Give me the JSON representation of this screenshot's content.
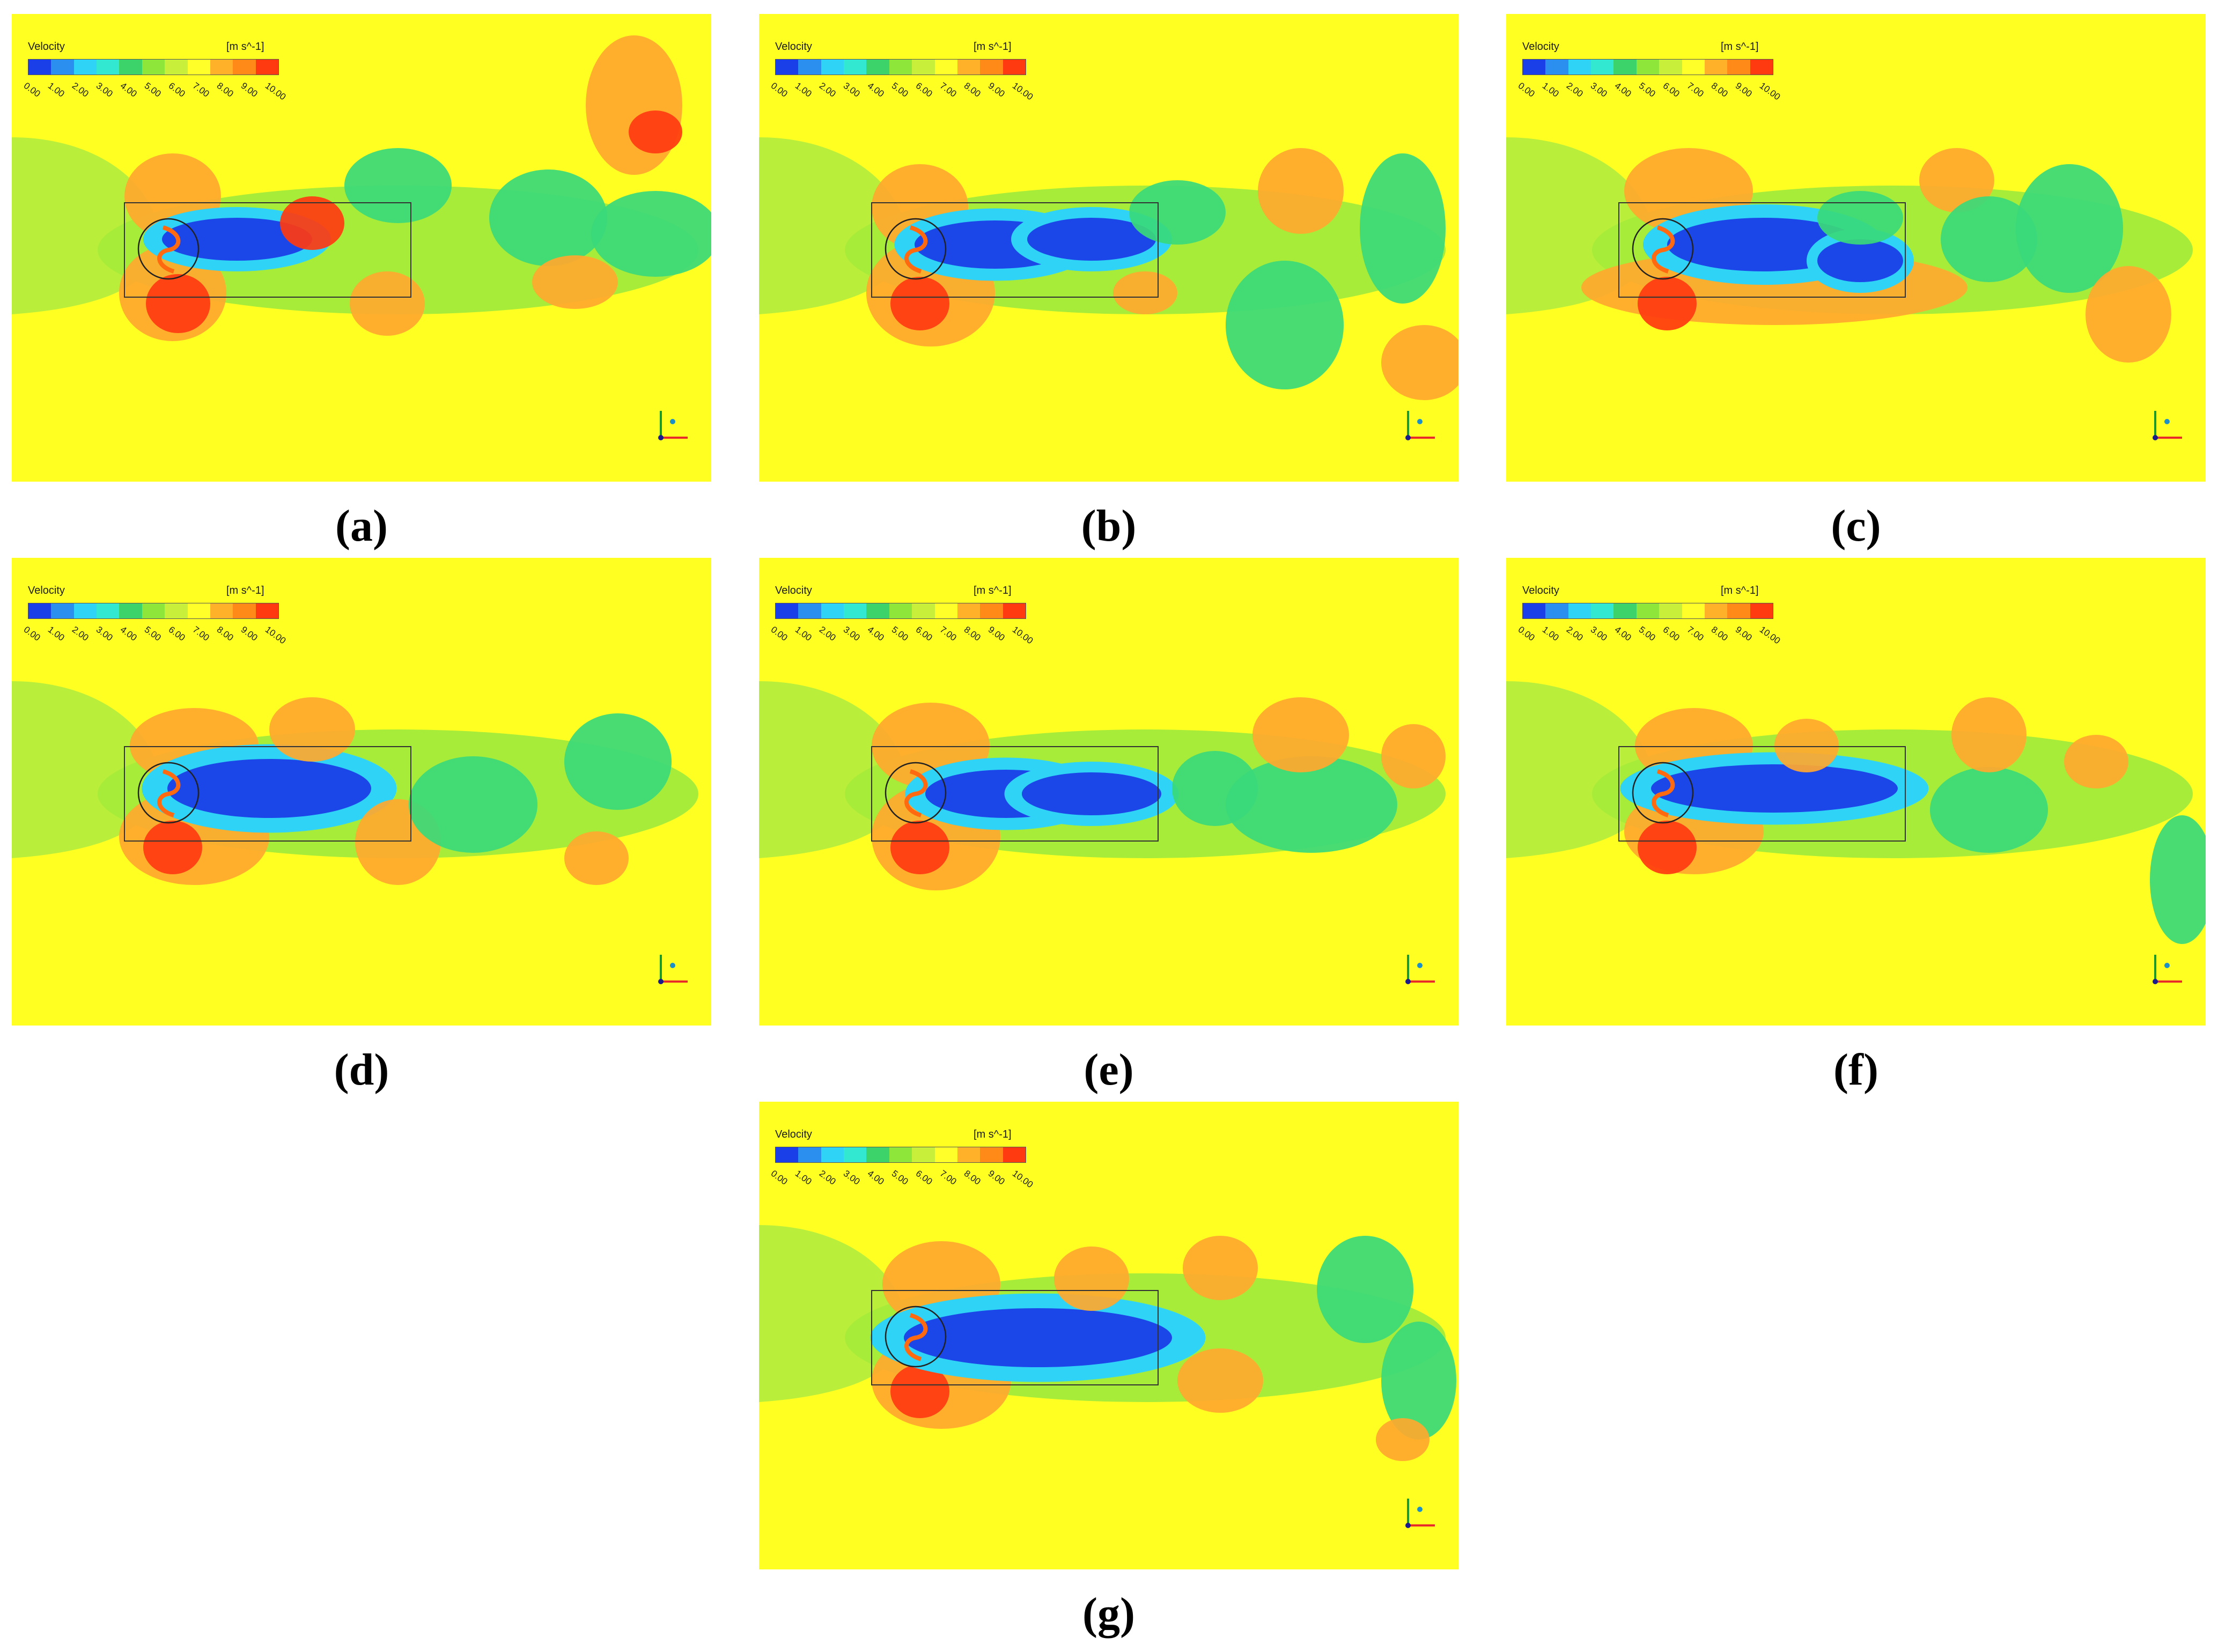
{
  "legend": {
    "title": "Velocity",
    "unit": "[m s^-1]",
    "ticks": [
      "0.00",
      "1.00",
      "2.00",
      "3.00",
      "4.00",
      "5.00",
      "6.00",
      "7.00",
      "8.00",
      "9.00",
      "10.00"
    ],
    "bands": [
      "#1a3fe8",
      "#2b8ff0",
      "#2fd3f5",
      "#33e8d0",
      "#3cd46a",
      "#8ee63a",
      "#c8f03a",
      "#ffff2a",
      "#ffb12a",
      "#ff8a18",
      "#ff3a10"
    ]
  },
  "colors": {
    "background": "#ffff22",
    "low": "#1a3fe8",
    "mid": "#39d979",
    "high": "#ff3a10",
    "warm": "#ffa82e"
  },
  "panels": [
    {
      "id": "a",
      "caption": "(a)"
    },
    {
      "id": "b",
      "caption": "(b)"
    },
    {
      "id": "c",
      "caption": "(c)"
    },
    {
      "id": "d",
      "caption": "(d)"
    },
    {
      "id": "e",
      "caption": "(e)"
    },
    {
      "id": "f",
      "caption": "(f)"
    },
    {
      "id": "g",
      "caption": "(g)"
    }
  ]
}
